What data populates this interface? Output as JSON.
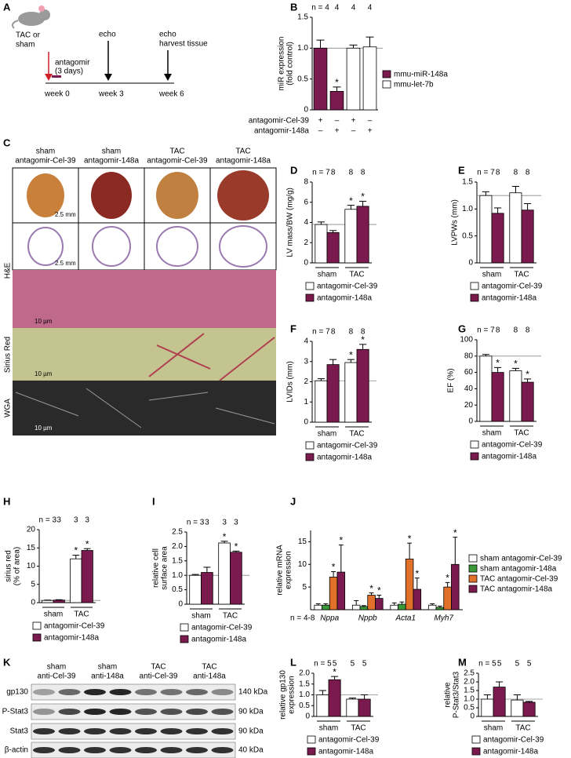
{
  "panels": {
    "A": {
      "letter": "A",
      "labels": [
        "TAC or",
        "sham",
        "echo",
        "antagomir",
        "(3 days)",
        "echo",
        "harvest tissue",
        "week 0",
        "week 3",
        "week 6"
      ]
    },
    "C": {
      "letter": "C",
      "columns": [
        [
          "sham",
          "antagomir-Cel-39"
        ],
        [
          "sham",
          "antagomir-148a"
        ],
        [
          "TAC",
          "antagomir-Cel-39"
        ],
        [
          "TAC",
          "antagomir-148a"
        ]
      ],
      "rows": [
        "H&E",
        "Sirius Red",
        "WGA"
      ],
      "scale_bars": [
        "2.5 mm",
        "2.5 mm",
        "10 µm",
        "10 µm",
        "10 µm"
      ]
    },
    "K": {
      "letter": "K",
      "columns": [
        [
          "sham",
          "anti-Cel-39"
        ],
        [
          "sham",
          "anti-148a"
        ],
        [
          "TAC",
          "anti-Cel-39"
        ],
        [
          "TAC",
          "anti-148a"
        ]
      ],
      "rows": [
        "gp130",
        "P-Stat3",
        "Stat3",
        "β-actin"
      ],
      "sizes": [
        "140 kDa",
        "90 kDa",
        "90 kDa",
        "40 kDa"
      ]
    }
  },
  "chart_data": [
    {
      "type": "bar",
      "panel": "B",
      "ylabel": [
        "miR expression",
        "(fold control)"
      ],
      "n_labels": [
        "n = 4",
        "4",
        "4",
        "4"
      ],
      "categories": [
        null,
        null,
        null,
        null
      ],
      "series": [
        {
          "name": "mmu-miR-148a",
          "color": "#7b1a4e",
          "values": [
            1.0,
            0.3,
            null,
            null
          ],
          "errors": [
            0.13,
            0.07,
            null,
            null
          ],
          "stars": [
            null,
            "*",
            null,
            null
          ]
        },
        {
          "name": "mmu-let-7b",
          "color": "#ffffff",
          "values": [
            null,
            null,
            1.0,
            1.02
          ],
          "errors": [
            null,
            null,
            0.05,
            0.16
          ]
        }
      ],
      "treatment_rows": [
        {
          "name": "antagomir-Cel-39",
          "signs": [
            "+",
            "–",
            "+",
            "–"
          ]
        },
        {
          "name": "antagomir-148a",
          "signs": [
            "–",
            "+",
            "–",
            "+"
          ]
        }
      ],
      "ylim": [
        0,
        1.5
      ],
      "yticks": [
        0,
        0.5,
        {
          "value": 1,
          "label": "1.0"
        },
        1.5
      ],
      "reference_line": 1.0,
      "legend": "right"
    },
    {
      "type": "bar",
      "panel": "D",
      "ylabel": [
        "LV mass/BW (mg/g)"
      ],
      "n_labels": [
        "n = 7",
        "8",
        "8",
        "8"
      ],
      "categories": [
        "sham",
        "TAC"
      ],
      "series": [
        {
          "name": "antagomir-Cel-39",
          "color": "#ffffff",
          "values": [
            3.8,
            5.3
          ],
          "errors": [
            0.25,
            0.4
          ],
          "stars": [
            null,
            "*"
          ]
        },
        {
          "name": "antagomir-148a",
          "color": "#7b1a4e",
          "values": [
            3.0,
            5.6
          ],
          "errors": [
            0.2,
            0.5
          ],
          "stars": [
            null,
            "*"
          ]
        }
      ],
      "ylim": [
        0,
        8
      ],
      "yticks": [
        0,
        2,
        4,
        6,
        8
      ],
      "reference_line": 3.8,
      "legend": "bottom"
    },
    {
      "type": "bar",
      "panel": "E",
      "ylabel": [
        "LVPWs (mm)"
      ],
      "n_labels": [
        "n = 7",
        "8",
        "8",
        "8"
      ],
      "categories": [
        "sham",
        "TAC"
      ],
      "series": [
        {
          "name": "antagomir-Cel-39",
          "color": "#ffffff",
          "values": [
            1.25,
            1.3
          ],
          "errors": [
            0.07,
            0.12
          ]
        },
        {
          "name": "antagomir-148a",
          "color": "#7b1a4e",
          "values": [
            0.92,
            0.98
          ],
          "errors": [
            0.1,
            0.12
          ]
        }
      ],
      "ylim": [
        0,
        1.5
      ],
      "yticks": [
        0,
        0.5,
        {
          "value": 1,
          "label": "1.0"
        },
        1.5
      ],
      "reference_line": 1.25,
      "legend": "bottom"
    },
    {
      "type": "bar",
      "panel": "F",
      "ylabel": [
        "LVIDs (mm)"
      ],
      "n_labels": [
        "n = 7",
        "8",
        "8",
        "8"
      ],
      "categories": [
        "sham",
        "TAC"
      ],
      "series": [
        {
          "name": "antagomir-Cel-39",
          "color": "#ffffff",
          "values": [
            2.05,
            2.95
          ],
          "errors": [
            0.1,
            0.15
          ],
          "stars": [
            null,
            "*"
          ]
        },
        {
          "name": "antagomir-148a",
          "color": "#7b1a4e",
          "values": [
            2.85,
            3.6
          ],
          "errors": [
            0.25,
            0.25
          ],
          "stars": [
            null,
            "*"
          ]
        }
      ],
      "ylim": [
        0,
        4
      ],
      "yticks": [
        0,
        1,
        2,
        3,
        4
      ],
      "reference_line": 2.05,
      "legend": "bottom"
    },
    {
      "type": "bar",
      "panel": "G",
      "ylabel": [
        "EF (%)"
      ],
      "n_labels": [
        "n = 7",
        "8",
        "8",
        "8"
      ],
      "categories": [
        "sham",
        "TAC"
      ],
      "series": [
        {
          "name": "antagomir-Cel-39",
          "color": "#ffffff",
          "values": [
            80,
            62
          ],
          "errors": [
            2,
            3
          ],
          "stars": [
            null,
            "*"
          ]
        },
        {
          "name": "antagomir-148a",
          "color": "#7b1a4e",
          "values": [
            60,
            48
          ],
          "errors": [
            6,
            4
          ],
          "stars": [
            "*",
            "*"
          ]
        }
      ],
      "ylim": [
        0,
        100
      ],
      "yticks": [
        0,
        20,
        40,
        60,
        80,
        100
      ],
      "reference_line": 80,
      "legend": "bottom"
    },
    {
      "type": "bar",
      "panel": "H",
      "ylabel": [
        "sirius red",
        "(% of area)"
      ],
      "n_labels": [
        "n = 3",
        "3",
        "3",
        "3"
      ],
      "categories": [
        "sham",
        "TAC"
      ],
      "series": [
        {
          "name": "antagomir-Cel-39",
          "color": "#ffffff",
          "values": [
            0.6,
            12
          ],
          "errors": [
            0.1,
            1
          ],
          "stars": [
            null,
            "*"
          ]
        },
        {
          "name": "antagomir-148a",
          "color": "#7b1a4e",
          "values": [
            0.7,
            14.3
          ],
          "errors": [
            0.1,
            0.5
          ],
          "stars": [
            null,
            "*"
          ]
        }
      ],
      "ylim": [
        0,
        20
      ],
      "yticks": [
        0,
        5,
        10,
        15,
        20
      ],
      "reference_line": 0.6,
      "legend": "bottom"
    },
    {
      "type": "bar",
      "panel": "I",
      "ylabel": [
        "relative cell",
        "surface area"
      ],
      "n_labels": [
        "n = 3",
        "3",
        "3",
        "3"
      ],
      "categories": [
        "sham",
        "TAC"
      ],
      "series": [
        {
          "name": "antagomir-Cel-39",
          "color": "#ffffff",
          "values": [
            1.0,
            2.12
          ],
          "errors": [
            0.03,
            0.06
          ],
          "stars": [
            null,
            "*"
          ]
        },
        {
          "name": "antagomir-148a",
          "color": "#7b1a4e",
          "values": [
            1.1,
            1.8
          ],
          "errors": [
            0.18,
            0.04
          ],
          "stars": [
            null,
            "*"
          ]
        }
      ],
      "ylim": [
        0,
        2.5
      ],
      "yticks": [
        0,
        0.5,
        {
          "value": 1,
          "label": "1.0"
        },
        1.5,
        {
          "value": 2,
          "label": "2.0"
        },
        2.5
      ],
      "reference_line": 1.0,
      "legend": "bottom"
    },
    {
      "type": "bar",
      "panel": "J",
      "ylabel": [
        "relative mRNA",
        "expression"
      ],
      "n_note": "n = 4-8",
      "categories": [
        "Nppa",
        "Nppb",
        "Acta1",
        "Myh7"
      ],
      "series": [
        {
          "name": "sham antagomir-Cel-39",
          "color": "#ffffff",
          "values": [
            1,
            1,
            1,
            1
          ],
          "errors": [
            0.3,
            1,
            0.5,
            0.3
          ]
        },
        {
          "name": "sham antagomir-148a",
          "color": "#3a9a3a",
          "values": [
            1,
            0.7,
            1.2,
            0.5
          ],
          "errors": [
            0.3,
            0.2,
            0.5,
            0.3
          ]
        },
        {
          "name": "TAC antagomir-Cel-39",
          "color": "#e0702a",
          "values": [
            7.2,
            3.2,
            11.2,
            5
          ],
          "errors": [
            1.2,
            0.5,
            3.5,
            1
          ],
          "stars": [
            "*",
            "*",
            "*",
            "*"
          ]
        },
        {
          "name": "TAC antagomir-148a",
          "color": "#7b1a4e",
          "values": [
            8.3,
            2.5,
            4.5,
            10
          ],
          "errors": [
            6,
            0.7,
            2.5,
            6
          ],
          "stars": [
            "*",
            "*",
            "*",
            "*"
          ]
        }
      ],
      "ylim": [
        0,
        17.5
      ],
      "yticks": [
        5,
        10,
        15
      ],
      "legend": "right"
    },
    {
      "type": "bar",
      "panel": "L",
      "ylabel": [
        "relative gp130",
        "expression"
      ],
      "n_labels": [
        "n = 5",
        "5",
        "5",
        "5"
      ],
      "categories": [
        "sham",
        "TAC"
      ],
      "series": [
        {
          "name": "antagomir-Cel-39",
          "color": "#ffffff",
          "values": [
            1.0,
            0.8
          ],
          "errors": [
            0.2,
            0.05
          ]
        },
        {
          "name": "antagomir-148a",
          "color": "#7b1a4e",
          "values": [
            1.7,
            0.8
          ],
          "errors": [
            0.15,
            0.2
          ],
          "stars": [
            "*",
            null
          ]
        }
      ],
      "ylim": [
        0,
        2
      ],
      "yticks": [
        0,
        0.5,
        {
          "value": 1,
          "label": "1.0"
        },
        1.5,
        {
          "value": 2,
          "label": "2.0"
        }
      ],
      "reference_line": 1.0,
      "legend": "bottom"
    },
    {
      "type": "bar",
      "panel": "M",
      "ylabel": [
        "relative",
        "P-Stat3/Stat3"
      ],
      "n_labels": [
        "n = 5",
        "5",
        "5",
        "5"
      ],
      "categories": [
        "sham",
        "TAC"
      ],
      "series": [
        {
          "name": "antagomir-Cel-39",
          "color": "#ffffff",
          "values": [
            1.0,
            0.95
          ],
          "errors": [
            0.25,
            0.3
          ]
        },
        {
          "name": "antagomir-148a",
          "color": "#7b1a4e",
          "values": [
            1.7,
            0.82
          ],
          "errors": [
            0.3,
            0.05
          ]
        }
      ],
      "ylim": [
        0,
        2.5
      ],
      "yticks": [
        0,
        0.5,
        {
          "value": 1,
          "label": "1.0"
        },
        1.5,
        {
          "value": 2,
          "label": "2.0"
        },
        2.5
      ],
      "reference_line": 1.0,
      "legend": "bottom"
    }
  ]
}
